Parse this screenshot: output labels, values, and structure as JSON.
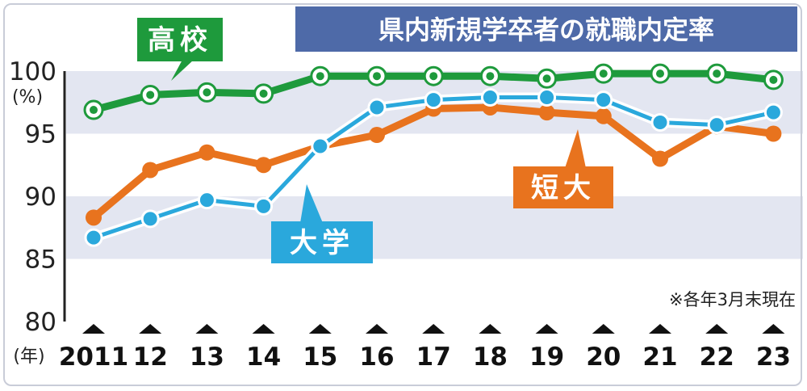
{
  "chart_data": {
    "type": "line",
    "title": "県内新規学卒者の就職内定率",
    "note": "※各年3月末現在",
    "ylabel": "(%)",
    "xlabel": "(年)",
    "ylim": [
      80,
      100
    ],
    "yticks": [
      80,
      85,
      90,
      95,
      100
    ],
    "x": [
      "2011",
      "12",
      "13",
      "14",
      "15",
      "16",
      "17",
      "18",
      "19",
      "20",
      "21",
      "22",
      "23"
    ],
    "bands": [
      [
        85,
        90
      ],
      [
        95,
        100
      ]
    ],
    "grid": false,
    "series": [
      {
        "name": "高校",
        "color": "#1e9a3c",
        "values": [
          96.9,
          98.1,
          98.3,
          98.2,
          99.6,
          99.6,
          99.6,
          99.6,
          99.4,
          99.8,
          99.8,
          99.8,
          99.3
        ]
      },
      {
        "name": "短大",
        "color": "#e8731e",
        "values": [
          88.3,
          92.1,
          93.5,
          92.5,
          94.0,
          94.9,
          97.0,
          97.1,
          96.7,
          96.4,
          93.0,
          95.6,
          95.0
        ]
      },
      {
        "name": "大学",
        "color": "#2aa8dc",
        "values": [
          86.7,
          88.2,
          89.7,
          89.2,
          94.0,
          97.1,
          97.7,
          97.9,
          97.9,
          97.7,
          95.9,
          95.7,
          96.7
        ]
      }
    ],
    "colors": {
      "band": "#e3e6f1",
      "title_bg": "#4e6aa8",
      "axis": "#222222",
      "marker_fill": "#ffffff"
    }
  }
}
